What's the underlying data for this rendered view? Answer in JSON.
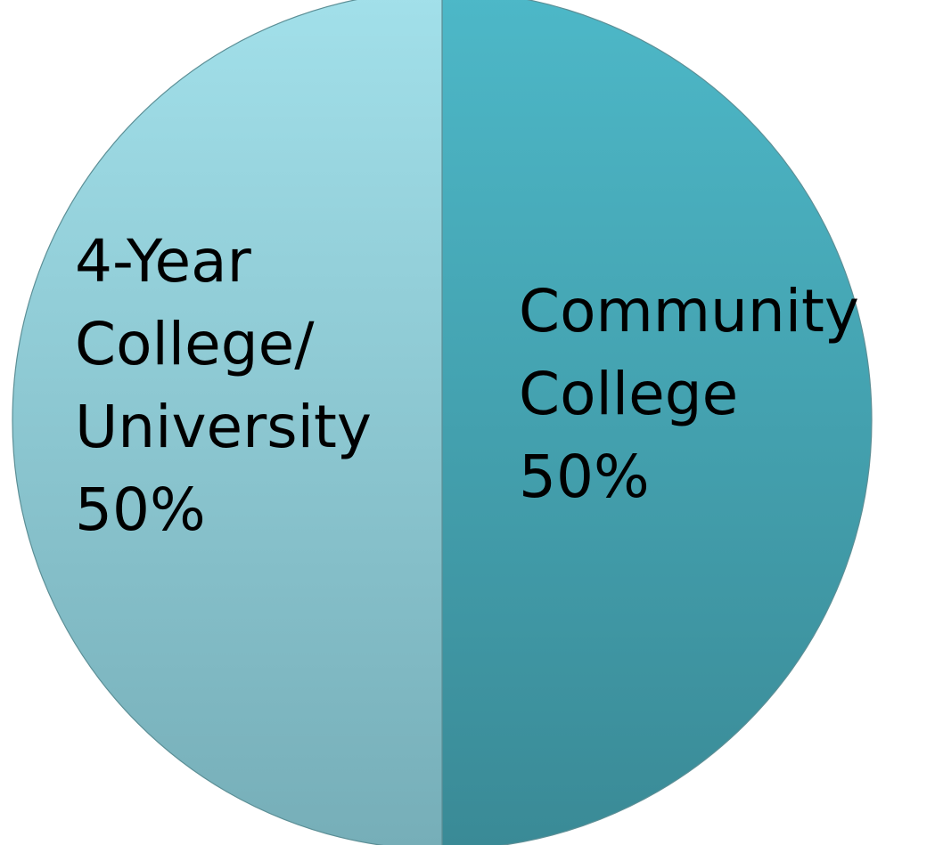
{
  "chart_data": {
    "type": "pie",
    "title": "",
    "slices": [
      {
        "label_lines": [
          "Community",
          "College",
          "50%"
        ],
        "category": "Community College",
        "value": 50,
        "color_top": "#4db8c8",
        "color_bottom": "#3a8a96"
      },
      {
        "label_lines": [
          "4-Year",
          "College/",
          "University",
          "50%"
        ],
        "category": "4-Year College/ University",
        "value": 50,
        "color_top": "#a2e0ea",
        "color_bottom": "#76aeb8"
      }
    ],
    "start_angle_deg": 0,
    "direction": "clockwise",
    "legend": "none"
  }
}
